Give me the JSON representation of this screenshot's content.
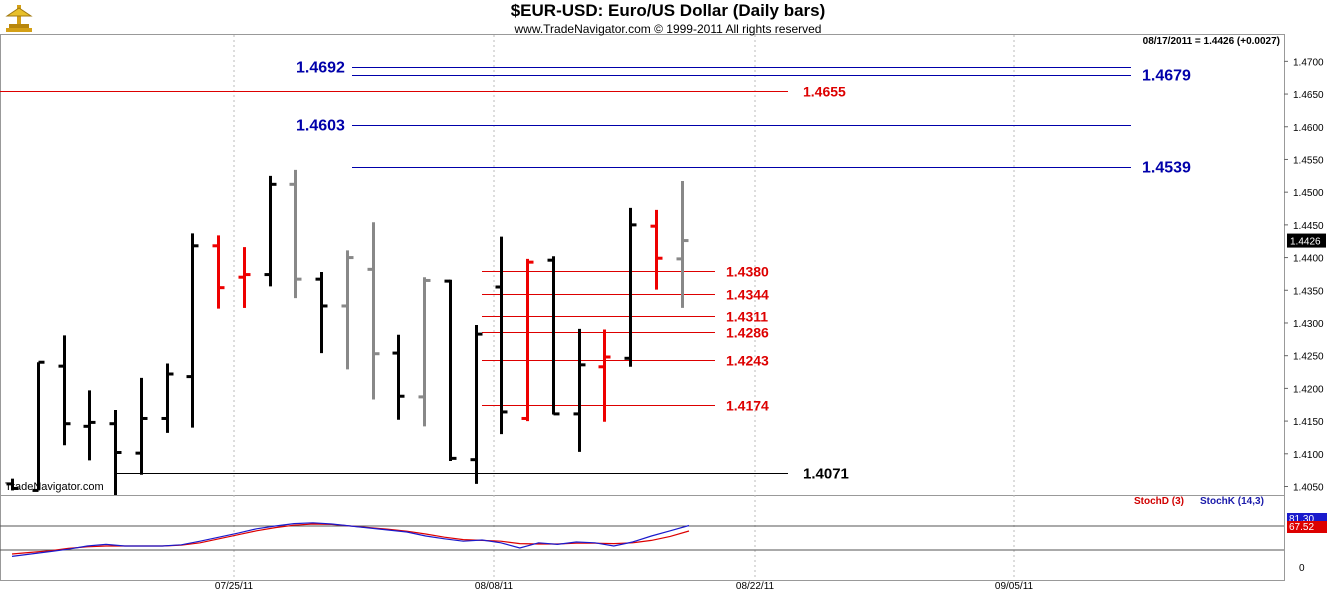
{
  "header": {
    "title": "$EUR-USD:  Euro/US Dollar  (Daily bars)",
    "subtitle": "www.TradeNavigator.com © 1999-2011 All rights reserved",
    "quote": "08/17/2011 = 1.4426 (+0.0027)",
    "watermark": "TradeNavigator.com"
  },
  "indicator": {
    "stochd_label": "StochD (3)",
    "stochk_label": "StochK (14,3)",
    "stochk_value": "81.30",
    "stochd_value": "67.52",
    "axis_zero": "0"
  },
  "colors": {
    "up_bar": "#000000",
    "down_bar": "#ee0000",
    "neutral_bar": "#888888",
    "blue_level": "#0000aa",
    "red_level": "#dd0000",
    "stochk": "#1a1acc",
    "stochd": "#dd0000"
  },
  "chart_data": {
    "type": "ohlc",
    "title": "$EUR-USD:  Euro/US Dollar  (Daily bars)",
    "ylim": [
      1.4037,
      1.4725
    ],
    "y_ticks": [
      "1.4700",
      "1.4650",
      "1.4600",
      "1.4550",
      "1.4500",
      "1.4450",
      "1.4400",
      "1.4350",
      "1.4300",
      "1.4250",
      "1.4200",
      "1.4150",
      "1.4100",
      "1.4050"
    ],
    "x_ticks": [
      "07/25/11",
      "08/08/11",
      "08/22/11",
      "09/05/11"
    ],
    "last_price": "1.4426",
    "bars": [
      {
        "high": 1.4062,
        "low": 1.4044,
        "open": 1.4054,
        "close": 1.4047,
        "tone": "up"
      },
      {
        "high": 1.424,
        "low": 1.4044,
        "open": 1.4044,
        "close": 1.424,
        "tone": "up"
      },
      {
        "high": 1.4281,
        "low": 1.4113,
        "open": 1.4234,
        "close": 1.4146,
        "tone": "up"
      },
      {
        "high": 1.4197,
        "low": 1.409,
        "open": 1.4142,
        "close": 1.4148,
        "tone": "up"
      },
      {
        "high": 1.4167,
        "low": 1.4037,
        "open": 1.4146,
        "close": 1.4102,
        "tone": "up"
      },
      {
        "high": 1.4216,
        "low": 1.4068,
        "open": 1.4101,
        "close": 1.4154,
        "tone": "up"
      },
      {
        "high": 1.4238,
        "low": 1.4132,
        "open": 1.4154,
        "close": 1.4222,
        "tone": "up"
      },
      {
        "high": 1.4437,
        "low": 1.414,
        "open": 1.4218,
        "close": 1.4418,
        "tone": "up"
      },
      {
        "high": 1.4434,
        "low": 1.4322,
        "open": 1.4418,
        "close": 1.4354,
        "tone": "down"
      },
      {
        "high": 1.4416,
        "low": 1.4323,
        "open": 1.437,
        "close": 1.4374,
        "tone": "down"
      },
      {
        "high": 1.4525,
        "low": 1.4356,
        "open": 1.4374,
        "close": 1.4512,
        "tone": "up"
      },
      {
        "high": 1.4534,
        "low": 1.4338,
        "open": 1.4512,
        "close": 1.4367,
        "tone": "neutral"
      },
      {
        "high": 1.4378,
        "low": 1.4254,
        "open": 1.4367,
        "close": 1.4326,
        "tone": "up"
      },
      {
        "high": 1.4411,
        "low": 1.4229,
        "open": 1.4326,
        "close": 1.44,
        "tone": "neutral"
      },
      {
        "high": 1.4454,
        "low": 1.4183,
        "open": 1.4382,
        "close": 1.4253,
        "tone": "neutral"
      },
      {
        "high": 1.4282,
        "low": 1.4152,
        "open": 1.4254,
        "close": 1.4188,
        "tone": "up"
      },
      {
        "high": 1.437,
        "low": 1.4142,
        "open": 1.4187,
        "close": 1.4365,
        "tone": "neutral"
      },
      {
        "high": 1.4366,
        "low": 1.4089,
        "open": 1.4364,
        "close": 1.4093,
        "tone": "up"
      },
      {
        "high": 1.4297,
        "low": 1.4054,
        "open": 1.4091,
        "close": 1.4283,
        "tone": "up"
      },
      {
        "high": 1.4432,
        "low": 1.413,
        "open": 1.4355,
        "close": 1.4164,
        "tone": "up"
      },
      {
        "high": 1.4398,
        "low": 1.415,
        "open": 1.4154,
        "close": 1.4393,
        "tone": "down"
      },
      {
        "high": 1.4402,
        "low": 1.416,
        "open": 1.4396,
        "close": 1.4161,
        "tone": "up"
      },
      {
        "high": 1.4291,
        "low": 1.4103,
        "open": 1.4161,
        "close": 1.4236,
        "tone": "up"
      },
      {
        "high": 1.429,
        "low": 1.4149,
        "open": 1.4233,
        "close": 1.4248,
        "tone": "down"
      },
      {
        "high": 1.4476,
        "low": 1.4233,
        "open": 1.4246,
        "close": 1.445,
        "tone": "up"
      },
      {
        "high": 1.4473,
        "low": 1.4351,
        "open": 1.4448,
        "close": 1.4399,
        "tone": "down"
      },
      {
        "high": 1.4517,
        "low": 1.4323,
        "open": 1.4398,
        "close": 1.4426,
        "tone": "neutral"
      }
    ],
    "levels": [
      {
        "label": "1.4692",
        "value": 1.4692,
        "color": "blue",
        "label_side": "left"
      },
      {
        "label": "1.4679",
        "value": 1.4679,
        "color": "blue",
        "label_side": "right"
      },
      {
        "label": "1.4655",
        "value": 1.4655,
        "color": "red",
        "label_side": "right"
      },
      {
        "label": "1.4603",
        "value": 1.4603,
        "color": "blue",
        "label_side": "left"
      },
      {
        "label": "1.4539",
        "value": 1.4539,
        "color": "blue",
        "label_side": "right"
      },
      {
        "label": "1.4380",
        "value": 1.438,
        "color": "red",
        "label_side": "right"
      },
      {
        "label": "1.4344",
        "value": 1.4344,
        "color": "red",
        "label_side": "right"
      },
      {
        "label": "1.4311",
        "value": 1.4311,
        "color": "red",
        "label_side": "right"
      },
      {
        "label": "1.4286",
        "value": 1.4286,
        "color": "red",
        "label_side": "right"
      },
      {
        "label": "1.4243",
        "value": 1.4243,
        "color": "red",
        "label_side": "right"
      },
      {
        "label": "1.4174",
        "value": 1.4174,
        "color": "red",
        "label_side": "right"
      },
      {
        "label": "1.4071",
        "value": 1.4071,
        "color": "black",
        "label_side": "right"
      }
    ],
    "stoch_k": [
      4,
      10,
      16,
      22,
      30,
      34,
      30,
      30,
      30,
      33,
      42,
      52,
      62,
      73,
      80,
      86,
      88,
      85,
      80,
      75,
      70,
      65,
      55,
      48,
      42,
      45,
      38,
      25,
      38,
      34,
      40,
      38,
      30,
      40,
      55,
      68,
      81.3
    ],
    "stoch_d": [
      10,
      14,
      18,
      24,
      28,
      30,
      30,
      30,
      30,
      32,
      38,
      48,
      58,
      68,
      76,
      82,
      85,
      84,
      80,
      76,
      72,
      67,
      60,
      52,
      46,
      44,
      42,
      36,
      35,
      35,
      37,
      37,
      36,
      38,
      44,
      54,
      67.52
    ]
  }
}
